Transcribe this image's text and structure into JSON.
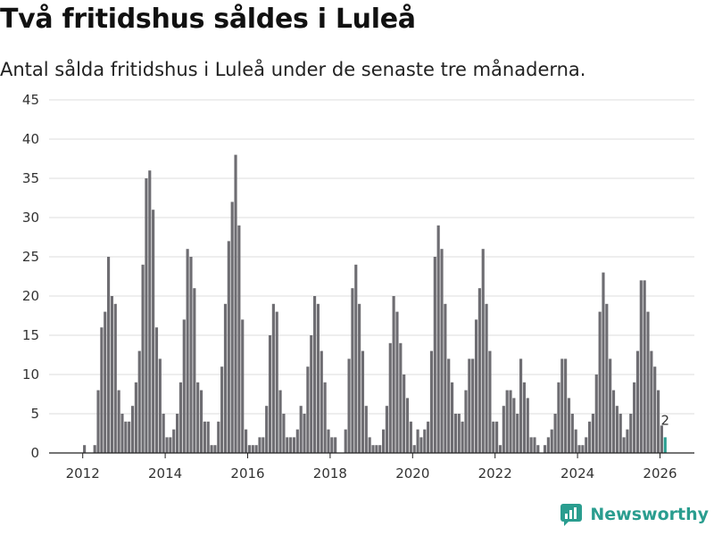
{
  "title": "Två fritidshus såldes i Luleå",
  "subtitle": "Antal sålda fritidshus i Luleå under de senaste tre månaderna.",
  "brand": {
    "name": "Newsworthy"
  },
  "colors": {
    "bar": "#6e6d72",
    "highlight": "#2a9d8f",
    "grid": "#dcdcdc",
    "text": "#333333"
  },
  "chart_data": {
    "type": "bar",
    "title": "Två fritidshus såldes i Luleå",
    "ylabel": "",
    "xlabel": "",
    "ylim": [
      0,
      45
    ],
    "yticks": [
      0,
      5,
      10,
      15,
      20,
      25,
      30,
      35,
      40,
      45
    ],
    "xticks": [
      2012,
      2014,
      2016,
      2018,
      2020,
      2022,
      2024,
      2026
    ],
    "start": "2011-01",
    "annotation": {
      "label": "2",
      "value": 2
    },
    "values": [
      0,
      0,
      0,
      0,
      0,
      0,
      0,
      0,
      0,
      0,
      0,
      0,
      1,
      0,
      0,
      1,
      8,
      16,
      18,
      25,
      20,
      19,
      8,
      5,
      4,
      4,
      6,
      9,
      13,
      24,
      35,
      36,
      31,
      16,
      12,
      5,
      2,
      2,
      3,
      5,
      9,
      17,
      26,
      25,
      21,
      9,
      8,
      4,
      4,
      1,
      1,
      4,
      11,
      19,
      27,
      32,
      38,
      29,
      17,
      3,
      1,
      1,
      1,
      2,
      2,
      6,
      15,
      19,
      18,
      8,
      5,
      2,
      2,
      2,
      3,
      6,
      5,
      11,
      15,
      20,
      19,
      13,
      9,
      3,
      2,
      2,
      0,
      0,
      3,
      12,
      21,
      24,
      19,
      13,
      6,
      2,
      1,
      1,
      1,
      3,
      6,
      14,
      20,
      18,
      14,
      10,
      7,
      4,
      1,
      3,
      2,
      3,
      4,
      13,
      25,
      29,
      26,
      19,
      12,
      9,
      5,
      5,
      4,
      8,
      12,
      12,
      17,
      21,
      26,
      19,
      13,
      4,
      4,
      1,
      6,
      8,
      8,
      7,
      5,
      12,
      9,
      7,
      2,
      2,
      1,
      0,
      1,
      2,
      3,
      5,
      9,
      12,
      12,
      7,
      5,
      3,
      1,
      1,
      2,
      4,
      5,
      10,
      18,
      23,
      19,
      12,
      8,
      6,
      5,
      2,
      3,
      5,
      9,
      13,
      22,
      22,
      18,
      13,
      11,
      8,
      3.5,
      2
    ]
  }
}
